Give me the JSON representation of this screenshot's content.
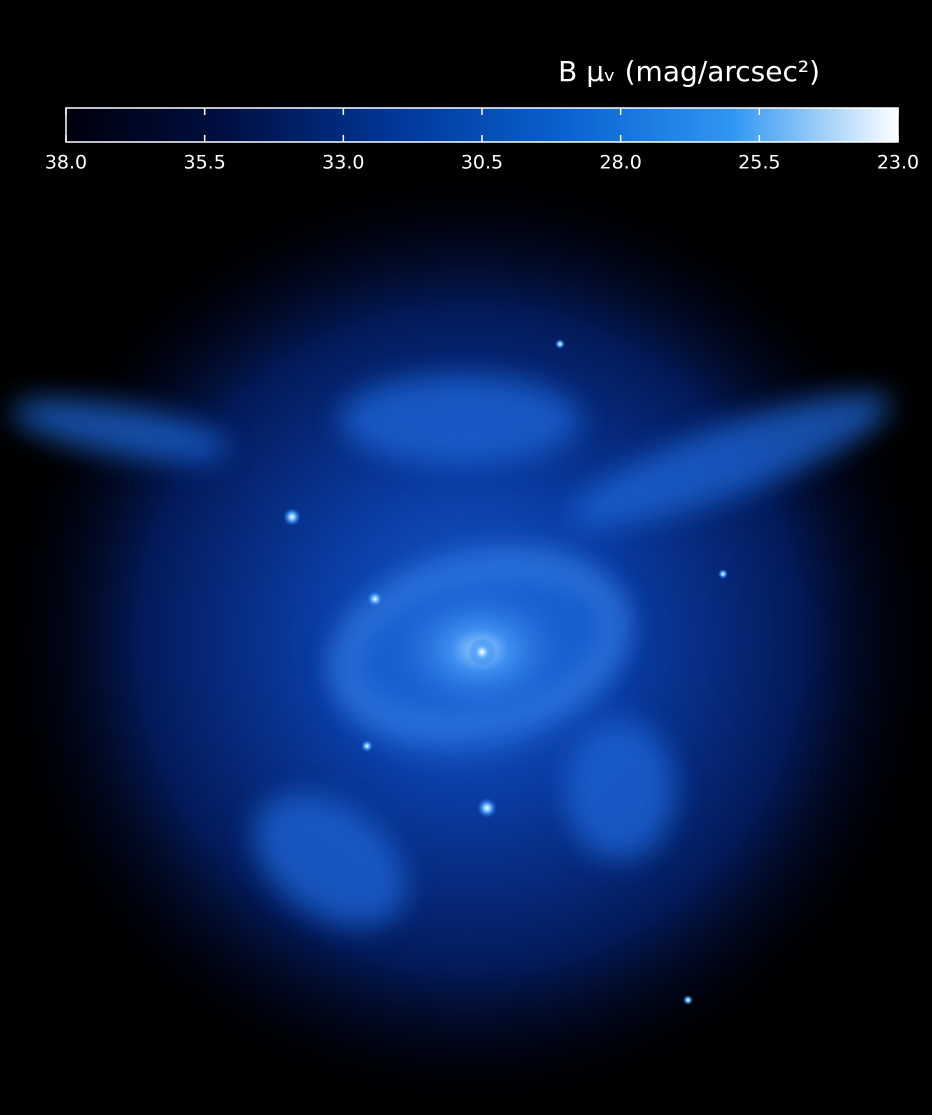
{
  "chart_data": {
    "type": "image",
    "title": "B μᵥ (mag/arcsec²)",
    "xlim": [
      38,
      23
    ],
    "xticks": [
      {
        "value": 38,
        "label": "38.0"
      },
      35.5,
      {
        "value": 33,
        "label": "33.0"
      },
      30.5,
      {
        "value": 28,
        "label": "28.0"
      },
      25.5,
      {
        "value": 23,
        "label": "23.0"
      }
    ],
    "colormap": [
      "#00000c",
      "#001045",
      "#00389a",
      "#0a62d0",
      "#2f96f2",
      "#ffffff"
    ]
  }
}
